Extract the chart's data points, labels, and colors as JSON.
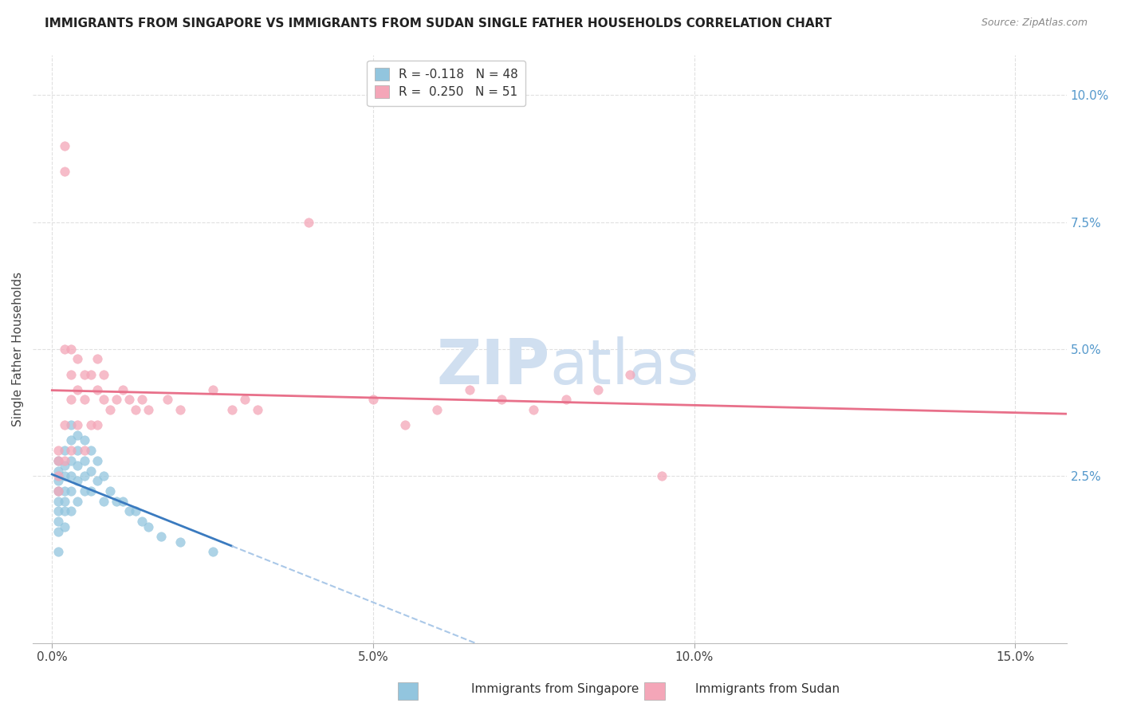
{
  "title": "IMMIGRANTS FROM SINGAPORE VS IMMIGRANTS FROM SUDAN SINGLE FATHER HOUSEHOLDS CORRELATION CHART",
  "source": "Source: ZipAtlas.com",
  "ylabel": "Single Father Households",
  "xlabel_ticks": [
    "0.0%",
    "5.0%",
    "10.0%",
    "15.0%"
  ],
  "xlabel_tick_vals": [
    0.0,
    0.05,
    0.1,
    0.15
  ],
  "ylabel_ticks": [
    "2.5%",
    "5.0%",
    "7.5%",
    "10.0%"
  ],
  "ylabel_tick_vals": [
    0.025,
    0.05,
    0.075,
    0.1
  ],
  "xlim": [
    -0.003,
    0.158
  ],
  "ylim": [
    -0.008,
    0.108
  ],
  "singapore_color": "#92c5de",
  "singapore_edge": "#92c5de",
  "sudan_color": "#f4a6b8",
  "sudan_edge": "#f4a6b8",
  "trend_singapore_solid_color": "#3a7abf",
  "trend_singapore_dash_color": "#aac8e8",
  "trend_sudan_color": "#e8708a",
  "watermark_zip": "ZIP",
  "watermark_atlas": "atlas",
  "watermark_color": "#d0dff0",
  "background_color": "#ffffff",
  "grid_color": "#e0e0e0",
  "singapore_x": [
    0.001,
    0.001,
    0.001,
    0.001,
    0.001,
    0.001,
    0.001,
    0.001,
    0.001,
    0.002,
    0.002,
    0.002,
    0.002,
    0.002,
    0.002,
    0.002,
    0.003,
    0.003,
    0.003,
    0.003,
    0.003,
    0.003,
    0.004,
    0.004,
    0.004,
    0.004,
    0.004,
    0.005,
    0.005,
    0.005,
    0.005,
    0.006,
    0.006,
    0.006,
    0.007,
    0.007,
    0.008,
    0.008,
    0.009,
    0.01,
    0.011,
    0.012,
    0.013,
    0.014,
    0.015,
    0.017,
    0.02,
    0.025
  ],
  "singapore_y": [
    0.028,
    0.026,
    0.024,
    0.022,
    0.02,
    0.018,
    0.016,
    0.014,
    0.01,
    0.03,
    0.027,
    0.025,
    0.022,
    0.02,
    0.018,
    0.015,
    0.035,
    0.032,
    0.028,
    0.025,
    0.022,
    0.018,
    0.033,
    0.03,
    0.027,
    0.024,
    0.02,
    0.032,
    0.028,
    0.025,
    0.022,
    0.03,
    0.026,
    0.022,
    0.028,
    0.024,
    0.025,
    0.02,
    0.022,
    0.02,
    0.02,
    0.018,
    0.018,
    0.016,
    0.015,
    0.013,
    0.012,
    0.01
  ],
  "sudan_x": [
    0.001,
    0.001,
    0.001,
    0.001,
    0.002,
    0.002,
    0.002,
    0.002,
    0.002,
    0.003,
    0.003,
    0.003,
    0.003,
    0.004,
    0.004,
    0.004,
    0.005,
    0.005,
    0.005,
    0.006,
    0.006,
    0.007,
    0.007,
    0.007,
    0.008,
    0.008,
    0.009,
    0.01,
    0.011,
    0.012,
    0.013,
    0.014,
    0.015,
    0.018,
    0.02,
    0.025,
    0.028,
    0.03,
    0.032,
    0.04,
    0.05,
    0.055,
    0.06,
    0.065,
    0.07,
    0.075,
    0.08,
    0.085,
    0.09,
    0.095
  ],
  "sudan_y": [
    0.03,
    0.028,
    0.025,
    0.022,
    0.09,
    0.085,
    0.05,
    0.035,
    0.028,
    0.05,
    0.045,
    0.04,
    0.03,
    0.048,
    0.042,
    0.035,
    0.045,
    0.04,
    0.03,
    0.045,
    0.035,
    0.048,
    0.042,
    0.035,
    0.045,
    0.04,
    0.038,
    0.04,
    0.042,
    0.04,
    0.038,
    0.04,
    0.038,
    0.04,
    0.038,
    0.042,
    0.038,
    0.04,
    0.038,
    0.075,
    0.04,
    0.035,
    0.038,
    0.042,
    0.04,
    0.038,
    0.04,
    0.042,
    0.045,
    0.025
  ],
  "sg_trend_x_start": 0.0,
  "sg_trend_x_solid_end": 0.028,
  "sg_trend_x_end": 0.158,
  "sd_trend_x_start": 0.0,
  "sd_trend_x_end": 0.158,
  "sg_R": -0.118,
  "sd_R": 0.25
}
